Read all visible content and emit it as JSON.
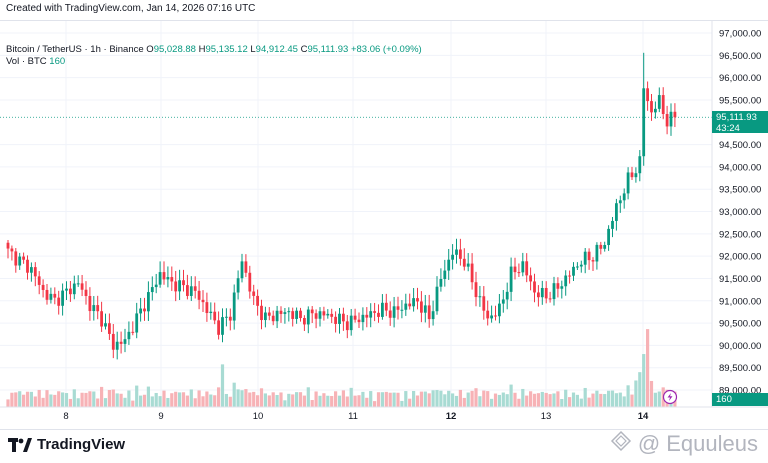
{
  "caption": "Created with TradingView.com, Jan 14, 2026 07:16 UTC",
  "legend": {
    "symbol": "Bitcoin / TetherUS · 1h · Binance",
    "open_label": "O",
    "open": "95,028.88",
    "high_label": "H",
    "high": "95,135.12",
    "low_label": "L",
    "low": "94,912.45",
    "close_label": "C",
    "close": "95,111.93",
    "change": "+83.06 (+0.09%)",
    "vol_label": "Vol · BTC",
    "vol_value": "160"
  },
  "price_tag": {
    "price": "95,111.93",
    "countdown": "43:24",
    "volume": "160"
  },
  "colors": {
    "up": "#089981",
    "down": "#f23645",
    "vol_up": "#a8dbd3",
    "vol_down": "#f7b2b6",
    "grid": "#f0f3fa"
  },
  "footer": {
    "brand": "TradingView",
    "watermark": "@ Equuleus",
    "brand_icon": "tradingview-logo-icon",
    "watermark_icon": "equuleus-logo-icon"
  },
  "chart_data": {
    "type": "candlestick",
    "price_axis": {
      "ticks": [
        "97,000.00",
        "96,500.00",
        "96,000.00",
        "95,500.00",
        "94,500.00",
        "94,000.00",
        "93,500.00",
        "93,000.00",
        "92,500.00",
        "92,000.00",
        "91,500.00",
        "91,000.00",
        "90,500.00",
        "90,000.00",
        "89,500.00",
        "89,000.00"
      ],
      "range": [
        88800,
        97200
      ]
    },
    "time_axis": {
      "labels": [
        "8",
        "9",
        "10",
        "11",
        "12",
        "13",
        "14"
      ],
      "bold": [
        "12",
        "14"
      ]
    },
    "anchors": [
      [
        0,
        92100
      ],
      [
        3,
        91900
      ],
      [
        6,
        91700
      ],
      [
        9,
        91200
      ],
      [
        12,
        91000
      ],
      [
        15,
        91200
      ],
      [
        18,
        91400
      ],
      [
        21,
        90900
      ],
      [
        24,
        90600
      ],
      [
        27,
        90000
      ],
      [
        30,
        90100
      ],
      [
        33,
        90600
      ],
      [
        36,
        91100
      ],
      [
        39,
        91600
      ],
      [
        42,
        91400
      ],
      [
        45,
        91300
      ],
      [
        48,
        91200
      ],
      [
        51,
        90800
      ],
      [
        54,
        90400
      ],
      [
        57,
        90700
      ],
      [
        60,
        91900
      ],
      [
        63,
        91000
      ],
      [
        66,
        90600
      ],
      [
        69,
        90700
      ],
      [
        72,
        90750
      ],
      [
        75,
        90600
      ],
      [
        78,
        90700
      ],
      [
        81,
        90700
      ],
      [
        84,
        90600
      ],
      [
        87,
        90500
      ],
      [
        90,
        90600
      ],
      [
        93,
        90700
      ],
      [
        96,
        90800
      ],
      [
        99,
        90750
      ],
      [
        102,
        90900
      ],
      [
        105,
        91000
      ],
      [
        108,
        90600
      ],
      [
        111,
        91500
      ],
      [
        114,
        92100
      ],
      [
        117,
        91900
      ],
      [
        120,
        91200
      ],
      [
        123,
        90600
      ],
      [
        126,
        90800
      ],
      [
        129,
        91600
      ],
      [
        132,
        91800
      ],
      [
        135,
        91200
      ],
      [
        138,
        91100
      ],
      [
        141,
        91300
      ],
      [
        144,
        91600
      ],
      [
        147,
        91900
      ],
      [
        150,
        92000
      ],
      [
        153,
        92300
      ],
      [
        156,
        93100
      ],
      [
        159,
        93700
      ],
      [
        162,
        94100
      ],
      [
        163,
        95800
      ],
      [
        165,
        95200
      ],
      [
        167,
        95500
      ],
      [
        169,
        95000
      ],
      [
        171,
        95111
      ]
    ]
  }
}
